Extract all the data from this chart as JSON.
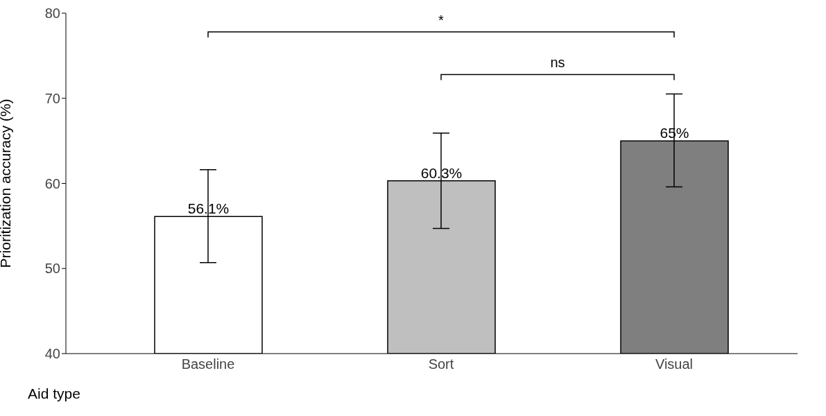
{
  "chart_data": {
    "type": "bar",
    "xlabel": "Aid type",
    "ylabel": "Prioritization accuracy (%)",
    "categories": [
      "Baseline",
      "Sort",
      "Visual"
    ],
    "values": [
      56.1,
      60.3,
      65
    ],
    "colors": [
      "#ffffff",
      "#bfbfbf",
      "#7f7f7f"
    ],
    "errors": [
      [
        50.7,
        61.6
      ],
      [
        54.7,
        65.9
      ],
      [
        59.6,
        70.5
      ]
    ],
    "value_labels": [
      "56.1%",
      "60.3%",
      "65%"
    ],
    "ylim": [
      40,
      80
    ],
    "yticks": [
      40,
      50,
      60,
      70,
      80
    ],
    "annotations": [
      "*",
      "ns"
    ],
    "grid": false,
    "legend": false
  }
}
